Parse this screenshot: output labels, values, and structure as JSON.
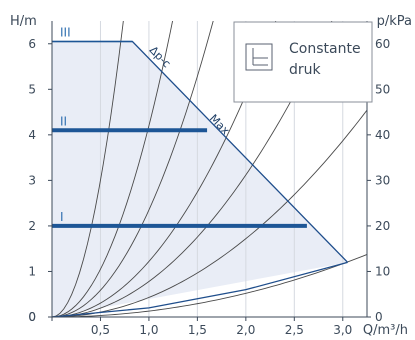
{
  "chart_data": {
    "type": "line",
    "title": "",
    "xlabel": "Q/m³/h",
    "ylabel_left": "H/m",
    "ylabel_right": "p/kPa",
    "xlim": [
      0,
      3.25
    ],
    "ylim": [
      0,
      6.5
    ],
    "ylim_right": [
      0,
      65
    ],
    "x_ticks": [
      0,
      0.5,
      1.0,
      1.5,
      2.0,
      2.5,
      3.0
    ],
    "x_tick_labels": [
      "0",
      "0,5",
      "1,0",
      "1,5",
      "2,0",
      "2,5",
      "3,0"
    ],
    "y_ticks": [
      0,
      1,
      2,
      3,
      4,
      5,
      6
    ],
    "y_tick_labels": [
      "0",
      "1",
      "2",
      "3",
      "4",
      "5",
      "6"
    ],
    "y_right_ticks": [
      0,
      10,
      20,
      30,
      40,
      50,
      60
    ],
    "y_right_tick_labels": [
      "0",
      "10",
      "20",
      "30",
      "40",
      "50",
      "60"
    ],
    "grid": "vertical",
    "legend": {
      "position": "top-right",
      "text_line1": "Constante",
      "text_line2": "druk"
    },
    "speed_settings": [
      {
        "name": "I",
        "head": 2.0,
        "q_max": 2.63
      },
      {
        "name": "II",
        "head": 4.1,
        "q_max": 1.6
      },
      {
        "name": "III",
        "head": 6.05,
        "q_max": 0.83
      }
    ],
    "max_curve": {
      "name": "Max",
      "points": [
        [
          0,
          6.05
        ],
        [
          0.83,
          6.05
        ],
        [
          3.05,
          1.2
        ]
      ]
    },
    "dp_c_label": "Δp-c",
    "max_label": "Max",
    "operating_envelope": [
      [
        0,
        0
      ],
      [
        0,
        6.05
      ],
      [
        0.83,
        6.05
      ],
      [
        3.05,
        1.2
      ],
      [
        0,
        0
      ]
    ],
    "system_curve_coefficients": [
      12.0,
      4.2,
      2.35,
      1.22,
      0.78,
      0.43,
      0.13
    ],
    "lower_boundary": {
      "points": [
        [
          0,
          0
        ],
        [
          1.0,
          0.2
        ],
        [
          2.0,
          0.6
        ],
        [
          3.05,
          1.2
        ]
      ]
    },
    "colors": {
      "boundary": "#1f4e8c",
      "speed_line": "#1d5696",
      "speed_label": "#2f6fb0",
      "fill": "#e9edf6",
      "system_curves": "#4a4a4a",
      "axes": "#3c4a5a"
    }
  }
}
